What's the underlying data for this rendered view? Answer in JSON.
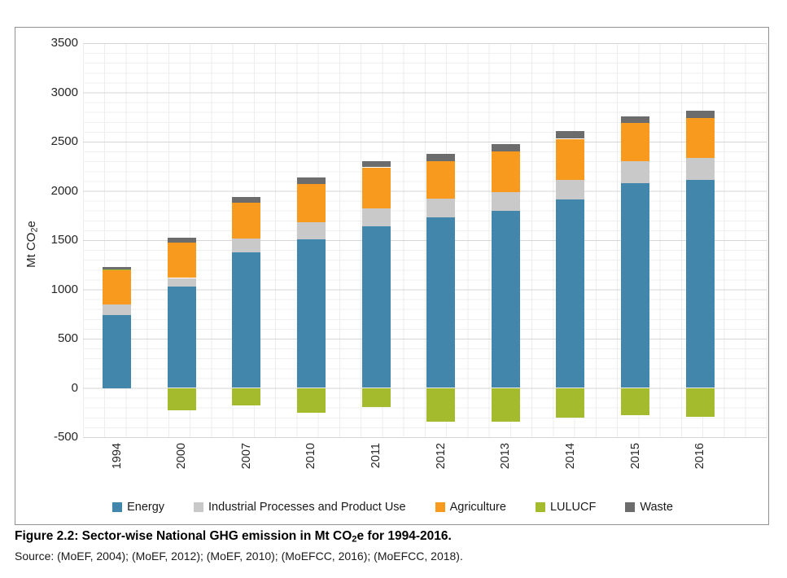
{
  "figure": {
    "caption": {
      "prefix": "Figure 2.2: Sector-wise National GHG emission in Mt CO",
      "sub": "2",
      "suffix": "e for 1994-2016."
    },
    "source": "Source: (MoEF, 2004); (MoEF, 2012); (MoEF, 2010); (MoEFCC, 2016); (MoEFCC, 2018)."
  },
  "chart_data": {
    "type": "bar",
    "stacked": true,
    "grid": true,
    "legend_position": "bottom",
    "ylabel": {
      "prefix": "Mt CO",
      "sub": "2",
      "suffix": "e"
    },
    "ylim": [
      -500,
      3500
    ],
    "ytick_interval": 500,
    "yticks": [
      3500,
      3000,
      2500,
      2000,
      1500,
      1000,
      500,
      0,
      -500
    ],
    "categories": [
      "1994",
      "2000",
      "2007",
      "2010",
      "2011",
      "2012",
      "2013",
      "2014",
      "2015",
      "2016"
    ],
    "series": [
      {
        "name": "Energy",
        "color": "#4386AB",
        "values": [
          744,
          1027,
          1374,
          1510,
          1640,
          1730,
          1795,
          1910,
          2075,
          2110
        ]
      },
      {
        "name": "Industrial Processes and Product Use",
        "color": "#C9C9C9",
        "values": [
          103,
          89,
          140,
          172,
          180,
          190,
          195,
          202,
          230,
          228
        ]
      },
      {
        "name": "Agriculture",
        "color": "#F79A1D",
        "values": [
          345,
          356,
          365,
          390,
          420,
          380,
          415,
          417,
          385,
          405
        ]
      },
      {
        "name": "LULUCF",
        "color": "#A4BB2D",
        "values": [
          14,
          -223,
          -177,
          -253,
          -195,
          -345,
          -345,
          -301,
          -280,
          -290
        ]
      },
      {
        "name": "Waste",
        "color": "#6C6C6C",
        "values": [
          23,
          53,
          58,
          66,
          65,
          75,
          70,
          78,
          70,
          75
        ]
      }
    ]
  }
}
